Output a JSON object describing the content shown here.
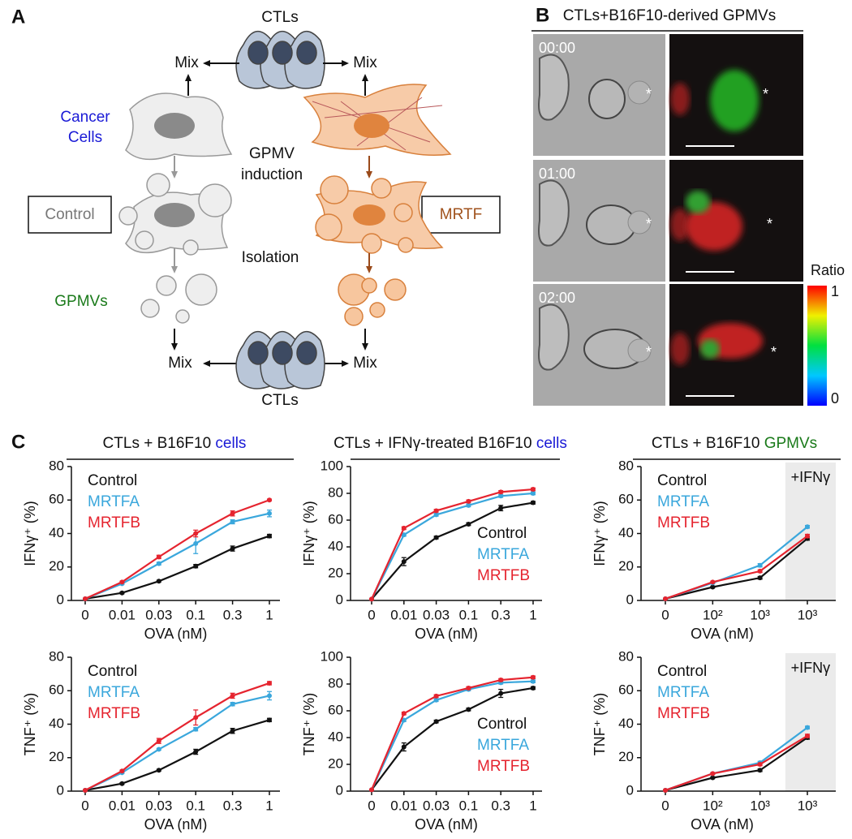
{
  "panel_labels": [
    "A",
    "B",
    "C"
  ],
  "diagram": {
    "ctls_top": "CTLs",
    "ctls_bottom": "CTLs",
    "mix": [
      "Mix",
      "Mix",
      "Mix",
      "Mix"
    ],
    "cancer_cells": [
      "Cancer",
      "Cells"
    ],
    "gpmv_induction": [
      "GPMV",
      "induction"
    ],
    "control": "Control",
    "mrtf": "MRTF",
    "isolation": "Isolation",
    "gpmvs": "GPMVs"
  },
  "microscopy": {
    "title": "CTLs+B16F10-derived GPMVs",
    "times": [
      "00:00",
      "01:00",
      "02:00"
    ],
    "marker": "*",
    "colorbar": {
      "label": "Ratio",
      "lim": [
        0,
        1
      ],
      "ticks": [
        0,
        1
      ]
    }
  },
  "column_headers": [
    {
      "text": "CTLs + B16F10 ",
      "emphasis": "cells",
      "emphasis_color": "#1a1ad6"
    },
    {
      "text": "CTLs + IFNγ-treated B16F10 ",
      "emphasis": "cells",
      "emphasis_color": "#1a1ad6"
    },
    {
      "text": "CTLs + B16F10 ",
      "emphasis": "GPMVs",
      "emphasis_color": "#1a7a1a"
    }
  ],
  "chart_data": [
    {
      "type": "line",
      "ylabel": "IFNγ⁺ (%)",
      "xlabel": "OVA (nM)",
      "categories": [
        "0",
        "0.01",
        "0.03",
        "0.1",
        "0.3",
        "1"
      ],
      "ylim": [
        0,
        80
      ],
      "yticks": [
        0,
        20,
        40,
        60,
        80
      ],
      "legend": "upper left",
      "series": [
        {
          "name": "Control",
          "color": "#111111",
          "values": [
            1,
            4.5,
            11.5,
            20.5,
            31,
            38.5
          ],
          "errors": [
            0.3,
            0.5,
            0.5,
            1,
            1.5,
            1
          ]
        },
        {
          "name": "MRTFA",
          "color": "#3aa7dc",
          "values": [
            1,
            10,
            22,
            34,
            47,
            52
          ],
          "errors": [
            0.3,
            0.5,
            0.8,
            6,
            1.2,
            2
          ]
        },
        {
          "name": "MRTFB",
          "color": "#e5242f",
          "values": [
            1,
            11,
            26,
            40,
            52,
            60
          ],
          "errors": [
            0.3,
            0.5,
            1,
            2,
            1.5,
            0.5
          ]
        }
      ]
    },
    {
      "type": "line",
      "ylabel": "IFNγ⁺ (%)",
      "xlabel": "OVA (nM)",
      "categories": [
        "0",
        "0.01",
        "0.03",
        "0.1",
        "0.3",
        "1"
      ],
      "ylim": [
        0,
        100
      ],
      "yticks": [
        0,
        20,
        40,
        60,
        80,
        100
      ],
      "legend": "lower right",
      "series": [
        {
          "name": "Control",
          "color": "#111111",
          "values": [
            1,
            29,
            47,
            57,
            69,
            73
          ],
          "errors": [
            0.3,
            3,
            1,
            1,
            2,
            1
          ]
        },
        {
          "name": "MRTFA",
          "color": "#3aa7dc",
          "values": [
            1,
            49,
            64,
            71,
            78,
            80
          ],
          "errors": [
            0.3,
            1,
            1,
            1,
            1,
            1
          ]
        },
        {
          "name": "MRTFB",
          "color": "#e5242f",
          "values": [
            1,
            54,
            67,
            74,
            81,
            83
          ],
          "errors": [
            0.3,
            1,
            1,
            1,
            1,
            1
          ]
        }
      ]
    },
    {
      "type": "line",
      "ylabel": "IFNγ⁺ (%)",
      "xlabel": "OVA (nM)",
      "categories": [
        "0",
        "10²",
        "10³",
        "10³"
      ],
      "ylim": [
        0,
        80
      ],
      "yticks": [
        0,
        20,
        40,
        60,
        80
      ],
      "legend": "upper left",
      "annotation": "+IFNγ",
      "series": [
        {
          "name": "Control",
          "color": "#111111",
          "values": [
            1,
            8,
            13.5,
            37
          ],
          "errors": [
            0.3,
            0.5,
            0.8,
            1
          ]
        },
        {
          "name": "MRTFA",
          "color": "#3aa7dc",
          "values": [
            1,
            10.5,
            21,
            44
          ],
          "errors": [
            0.3,
            0.5,
            1,
            0.8
          ]
        },
        {
          "name": "MRTFB",
          "color": "#e5242f",
          "values": [
            1,
            11,
            17.5,
            38.5
          ],
          "errors": [
            0.3,
            0.5,
            0.8,
            1
          ]
        }
      ]
    },
    {
      "type": "line",
      "ylabel": "TNF⁺ (%)",
      "xlabel": "OVA (nM)",
      "categories": [
        "0",
        "0.01",
        "0.03",
        "0.1",
        "0.3",
        "1"
      ],
      "ylim": [
        0,
        80
      ],
      "yticks": [
        0,
        20,
        40,
        60,
        80
      ],
      "legend": "upper left",
      "series": [
        {
          "name": "Control",
          "color": "#111111",
          "values": [
            0.5,
            4.5,
            12.5,
            23.5,
            36,
            42.5
          ],
          "errors": [
            0.3,
            0.5,
            0.5,
            1.5,
            1.5,
            1
          ]
        },
        {
          "name": "MRTFA",
          "color": "#3aa7dc",
          "values": [
            0.5,
            11,
            25,
            37,
            52,
            57
          ],
          "errors": [
            0.3,
            0.5,
            0.5,
            1,
            1,
            2.5
          ]
        },
        {
          "name": "MRTFB",
          "color": "#e5242f",
          "values": [
            0.5,
            12,
            30,
            44,
            57,
            64.5
          ],
          "errors": [
            0.3,
            0.5,
            1.5,
            4.5,
            1.5,
            1
          ]
        }
      ]
    },
    {
      "type": "line",
      "ylabel": "TNF⁺ (%)",
      "xlabel": "OVA (nM)",
      "categories": [
        "0",
        "0.01",
        "0.03",
        "0.1",
        "0.3",
        "1"
      ],
      "ylim": [
        0,
        100
      ],
      "yticks": [
        0,
        20,
        40,
        60,
        80,
        100
      ],
      "legend": "lower right",
      "series": [
        {
          "name": "Control",
          "color": "#111111",
          "values": [
            1,
            33,
            52,
            61,
            73,
            77
          ],
          "errors": [
            0.3,
            3,
            1,
            1,
            3,
            1
          ]
        },
        {
          "name": "MRTFA",
          "color": "#3aa7dc",
          "values": [
            1,
            53,
            68,
            76,
            81,
            82
          ],
          "errors": [
            0.3,
            1,
            1,
            1,
            1,
            1
          ]
        },
        {
          "name": "MRTFB",
          "color": "#e5242f",
          "values": [
            1,
            58,
            71,
            77,
            83,
            85
          ],
          "errors": [
            0.3,
            1,
            1,
            1,
            1,
            1
          ]
        }
      ]
    },
    {
      "type": "line",
      "ylabel": "TNF⁺ (%)",
      "xlabel": "OVA (nM)",
      "categories": [
        "0",
        "10²",
        "10³",
        "10³"
      ],
      "ylim": [
        0,
        80
      ],
      "yticks": [
        0,
        20,
        40,
        60,
        80
      ],
      "legend": "upper left",
      "annotation": "+IFNγ",
      "series": [
        {
          "name": "Control",
          "color": "#111111",
          "values": [
            0.5,
            8,
            12.5,
            32
          ],
          "errors": [
            0.3,
            0.5,
            0.8,
            1
          ]
        },
        {
          "name": "MRTFA",
          "color": "#3aa7dc",
          "values": [
            0.5,
            10.5,
            17,
            38
          ],
          "errors": [
            0.3,
            0.5,
            0.8,
            0.8
          ]
        },
        {
          "name": "MRTFB",
          "color": "#e5242f",
          "values": [
            0.5,
            10.5,
            16,
            33
          ],
          "errors": [
            0.3,
            0.5,
            0.8,
            1
          ]
        }
      ]
    }
  ]
}
